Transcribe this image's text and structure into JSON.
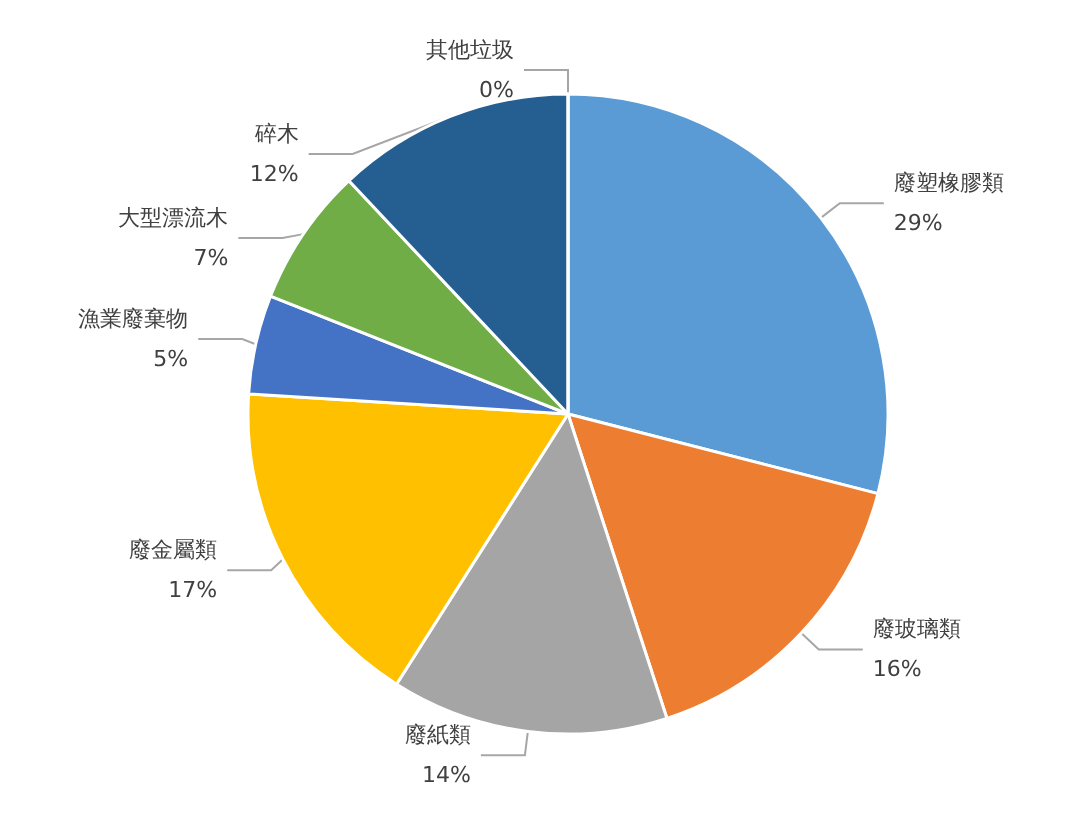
{
  "chart_data": {
    "type": "pie",
    "categories": [
      "廢塑橡膠類",
      "廢玻璃類",
      "廢紙類",
      "廢金屬類",
      "漁業廢棄物",
      "大型漂流木",
      "碎木",
      "其他垃圾"
    ],
    "values": [
      29,
      16,
      14,
      17,
      5,
      7,
      12,
      0
    ],
    "value_labels": [
      "29%",
      "16%",
      "14%",
      "17%",
      "5%",
      "7%",
      "12%",
      "0%"
    ],
    "colors": [
      "#5b9bd5",
      "#ed7d31",
      "#a5a5a5",
      "#ffc000",
      "#4472c4",
      "#70ad47",
      "#255e91",
      "#9e480e"
    ]
  }
}
